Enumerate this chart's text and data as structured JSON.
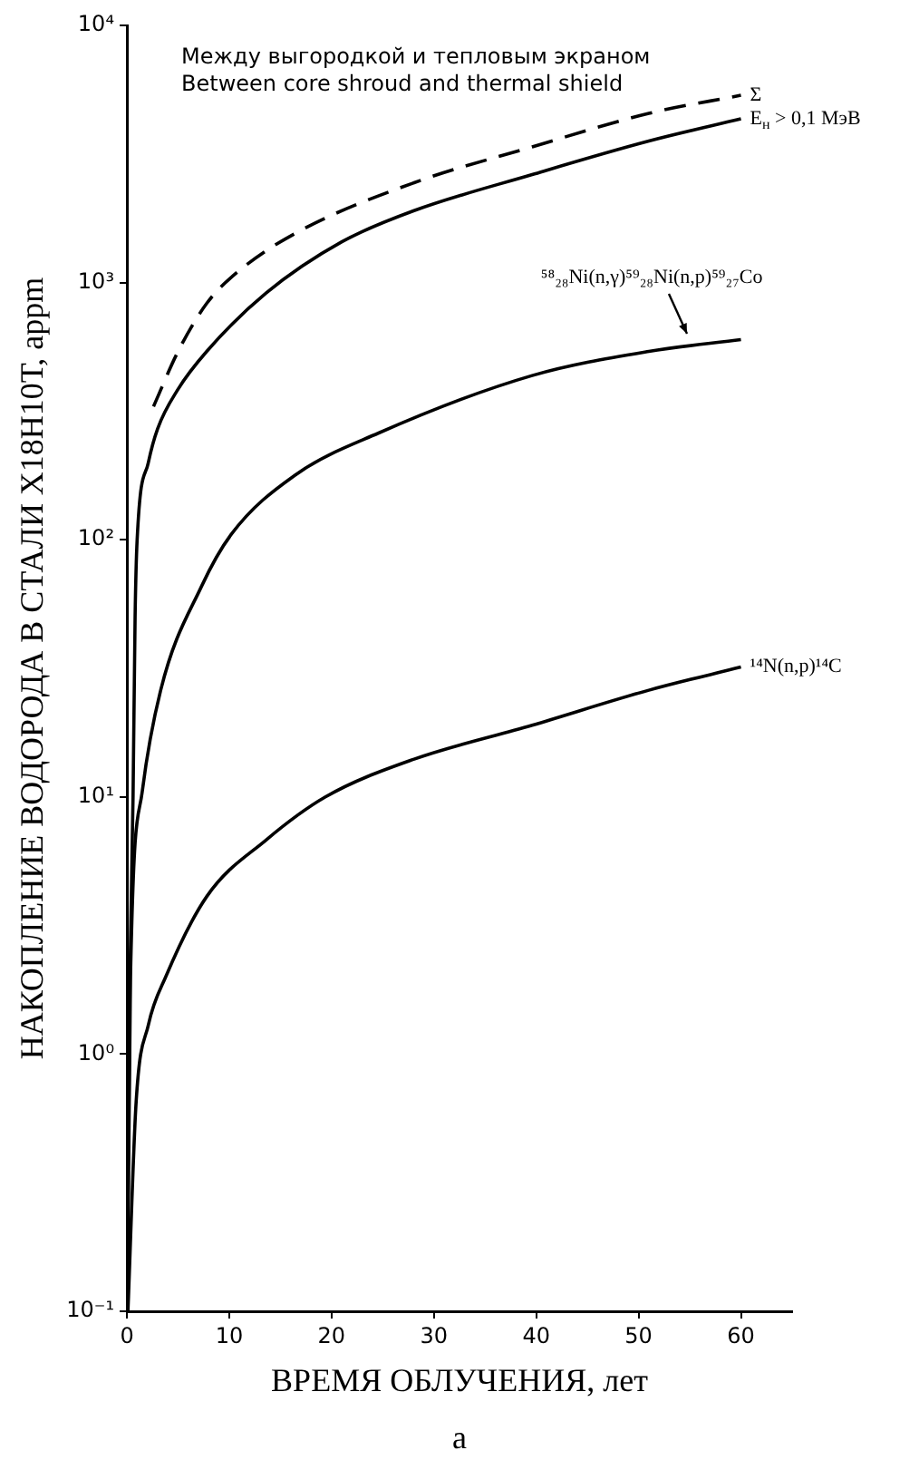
{
  "chart_data": {
    "type": "line",
    "xlabel": "ВРЕМЯ ОБЛУЧЕНИЯ, лет",
    "ylabel": "НАКОПЛЕНИЕ ВОДОРОДА В СТАЛИ Х18Н10Т, appm",
    "annotations": [
      "Между выгородкой и тепловым экраном",
      "Between core shroud and thermal shield",
      "а"
    ],
    "xlim": [
      0,
      65
    ],
    "xticks": [
      0,
      10,
      20,
      30,
      40,
      50,
      60
    ],
    "ylim": [
      0.1,
      10000
    ],
    "yticks": [
      {
        "value": 0.1,
        "label": "10⁻¹"
      },
      {
        "value": 1,
        "label": "10⁰"
      },
      {
        "value": 10,
        "label": "10¹"
      },
      {
        "value": 100,
        "label": "10²"
      },
      {
        "value": 1000,
        "label": "10³"
      },
      {
        "value": 10000,
        "label": "10⁴"
      }
    ],
    "log": "y",
    "grid": false,
    "legend": false,
    "marker": "none",
    "series": [
      {
        "name": "Σ",
        "color": "#000000",
        "line_style": "dashed",
        "x": [
          2.6,
          5,
          7.8,
          10.7,
          16.4,
          28,
          39.6,
          51,
          60
        ],
        "values": [
          330,
          540,
          830,
          1090,
          1550,
          2440,
          3370,
          4550,
          5350
        ]
      },
      {
        "name": "E$_{н}$ > 0,1 МэВ",
        "color": "#000000",
        "line_style": "solid",
        "x": [
          0.02,
          0.3,
          0.6,
          0.8,
          1,
          2.1,
          3,
          5,
          7.8,
          13.6,
          21,
          28,
          39.6,
          51,
          60
        ],
        "values": [
          0.1,
          2,
          10,
          50,
          100,
          200,
          270,
          385,
          540,
          910,
          1440,
          1900,
          2630,
          3550,
          4330
        ]
      },
      {
        "name": "⁵⁸₂₈Ni(n,γ)⁵⁹₂₈Ni(n,p)⁵⁹₂₇Co",
        "color": "#000000",
        "line_style": "solid",
        "x": [
          0.05,
          0.35,
          1.5,
          3.3,
          7.3,
          10.2,
          16.4,
          24.6,
          39.6,
          51,
          60
        ],
        "values": [
          0.1,
          2,
          10.5,
          26,
          66,
          105,
          178,
          260,
          435,
          540,
          600
        ]
      },
      {
        "name": "¹⁴N(n,p)¹⁴C",
        "color": "#000000",
        "line_style": "solid",
        "x": [
          0.1,
          0.9,
          2.1,
          3.8,
          7.8,
          13.6,
          19.4,
          28,
          39.6,
          51,
          60
        ],
        "values": [
          0.1,
          0.65,
          1.3,
          2,
          4.1,
          6.8,
          10,
          14,
          19,
          26,
          32
        ]
      }
    ]
  }
}
